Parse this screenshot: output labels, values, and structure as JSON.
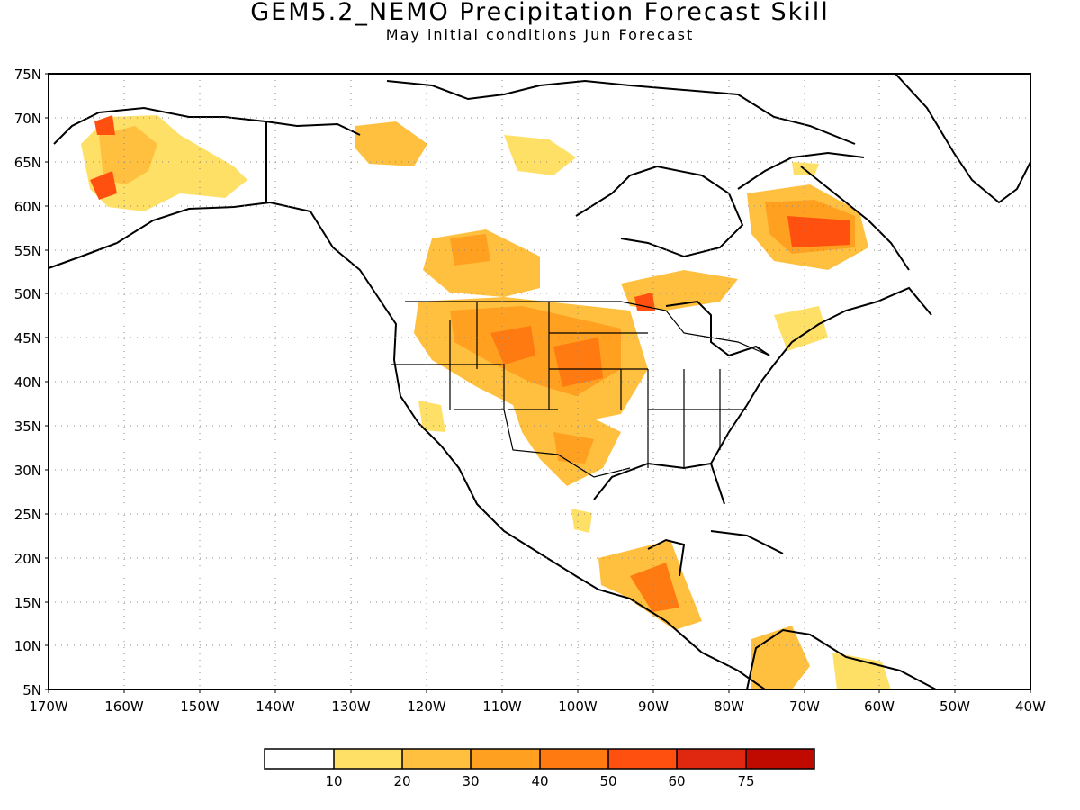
{
  "title": "GEM5.2_NEMO Precipitation Forecast Skill",
  "subtitle": "May initial conditions  Jun Forecast",
  "lat_labels": [
    "75N",
    "70N",
    "65N",
    "60N",
    "55N",
    "50N",
    "45N",
    "40N",
    "35N",
    "30N",
    "25N",
    "20N",
    "15N",
    "10N",
    "5N"
  ],
  "lon_labels": [
    "170W",
    "160W",
    "150W",
    "140W",
    "130W",
    "120W",
    "110W",
    "100W",
    "90W",
    "80W",
    "70W",
    "60W",
    "50W",
    "40W"
  ],
  "legend": {
    "labels": [
      "10",
      "20",
      "30",
      "40",
      "50",
      "60",
      "75"
    ],
    "colors": [
      "#ffffff",
      "#ffe066",
      "#ffc040",
      "#ffa020",
      "#ff7a10",
      "#ff5010",
      "#e02810",
      "#c00a00",
      "#a00000"
    ]
  },
  "colors": {
    "skill_10_20": "#ffe066",
    "skill_20_30": "#ffc040",
    "skill_30_40": "#ffa020",
    "skill_40_50": "#ff7a10",
    "skill_50_60": "#ff5010"
  }
}
